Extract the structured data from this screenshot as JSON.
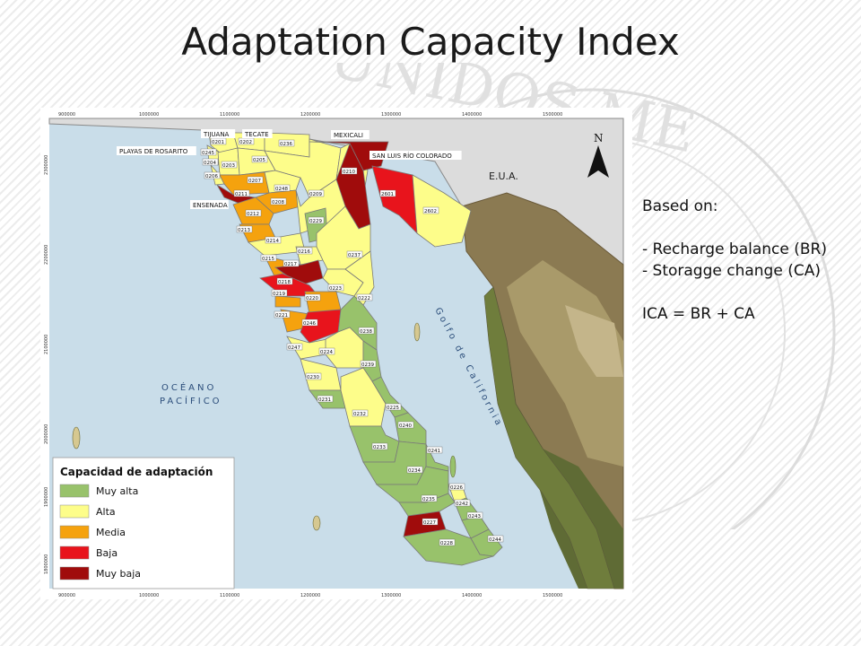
{
  "slide": {
    "title": "Adaptation Capacity Index",
    "notes": {
      "heading": "Based on:",
      "items": [
        "- Recharge balance (BR)",
        "- Storagge change (CA)"
      ],
      "formula": "ICA = BR + CA"
    }
  },
  "map": {
    "north_label": "N",
    "country_label": "E.U.A.",
    "ocean_label_1": "OCÉANO",
    "ocean_label_2": "PACÍFICO",
    "gulf_label": "Golfo de California",
    "x_ticks": [
      "900000",
      "1000000",
      "1100000",
      "1200000",
      "1300000",
      "1400000",
      "1500000"
    ],
    "y_ticks": [
      "2300000",
      "2200000",
      "2100000",
      "2000000",
      "1900000",
      "1800000"
    ],
    "cities": [
      "TIJUANA",
      "TECATE",
      "MEXICALI",
      "SAN LUIS RÍO COLORADO",
      "PLAYAS DE ROSARITO",
      "ENSENADA"
    ],
    "zones": [
      {
        "id": "0201",
        "class": "Alta"
      },
      {
        "id": "0202",
        "class": "Alta"
      },
      {
        "id": "0236",
        "class": "Alta"
      },
      {
        "id": "0245",
        "class": "Alta"
      },
      {
        "id": "0204",
        "class": "Alta"
      },
      {
        "id": "0203",
        "class": "Alta"
      },
      {
        "id": "0205",
        "class": "Alta"
      },
      {
        "id": "0206",
        "class": "Alta"
      },
      {
        "id": "0207",
        "class": "Media"
      },
      {
        "id": "0211",
        "class": "Muy baja"
      },
      {
        "id": "0248",
        "class": "Alta"
      },
      {
        "id": "0208",
        "class": "Media"
      },
      {
        "id": "0212",
        "class": "Media"
      },
      {
        "id": "0213",
        "class": "Media"
      },
      {
        "id": "0214",
        "class": "Alta"
      },
      {
        "id": "0209",
        "class": "Alta"
      },
      {
        "id": "0229",
        "class": "Muy alta"
      },
      {
        "id": "0210",
        "class": "Muy baja"
      },
      {
        "id": "2601",
        "class": "Baja"
      },
      {
        "id": "2602",
        "class": "Alta"
      },
      {
        "id": "0216",
        "class": "Alta"
      },
      {
        "id": "0215",
        "class": "Media"
      },
      {
        "id": "0217",
        "class": "Muy baja"
      },
      {
        "id": "0218",
        "class": "Baja"
      },
      {
        "id": "0219",
        "class": "Media"
      },
      {
        "id": "0237",
        "class": "Alta"
      },
      {
        "id": "0223",
        "class": "Alta"
      },
      {
        "id": "0220",
        "class": "Media"
      },
      {
        "id": "0222",
        "class": "Alta"
      },
      {
        "id": "0221",
        "class": "Media"
      },
      {
        "id": "0246",
        "class": "Baja"
      },
      {
        "id": "0238",
        "class": "Muy alta"
      },
      {
        "id": "0247",
        "class": "Alta"
      },
      {
        "id": "0224",
        "class": "Alta"
      },
      {
        "id": "0239",
        "class": "Muy alta"
      },
      {
        "id": "0230",
        "class": "Alta"
      },
      {
        "id": "0231",
        "class": "Muy alta"
      },
      {
        "id": "0232",
        "class": "Alta"
      },
      {
        "id": "0225",
        "class": "Muy alta"
      },
      {
        "id": "0240",
        "class": "Muy alta"
      },
      {
        "id": "0233",
        "class": "Muy alta"
      },
      {
        "id": "0241",
        "class": "Muy alta"
      },
      {
        "id": "0234",
        "class": "Muy alta"
      },
      {
        "id": "0226",
        "class": "Alta"
      },
      {
        "id": "0235",
        "class": "Muy alta"
      },
      {
        "id": "0242",
        "class": "Muy alta"
      },
      {
        "id": "0227",
        "class": "Muy baja"
      },
      {
        "id": "0243",
        "class": "Muy alta"
      },
      {
        "id": "0244",
        "class": "Muy alta"
      },
      {
        "id": "0228",
        "class": "Muy alta"
      }
    ],
    "legend": {
      "title": "Capacidad de adaptación",
      "items": [
        {
          "label": "Muy alta",
          "color": "#98c26b"
        },
        {
          "label": "Alta",
          "color": "#fdfd8a"
        },
        {
          "label": "Media",
          "color": "#f5a20e"
        },
        {
          "label": "Baja",
          "color": "#e8141c"
        },
        {
          "label": "Muy baja",
          "color": "#a00c0c"
        }
      ]
    },
    "colors": {
      "sea": "#c9dde9",
      "usa": "#dcdcdc",
      "border": "#7a7a7a"
    }
  }
}
